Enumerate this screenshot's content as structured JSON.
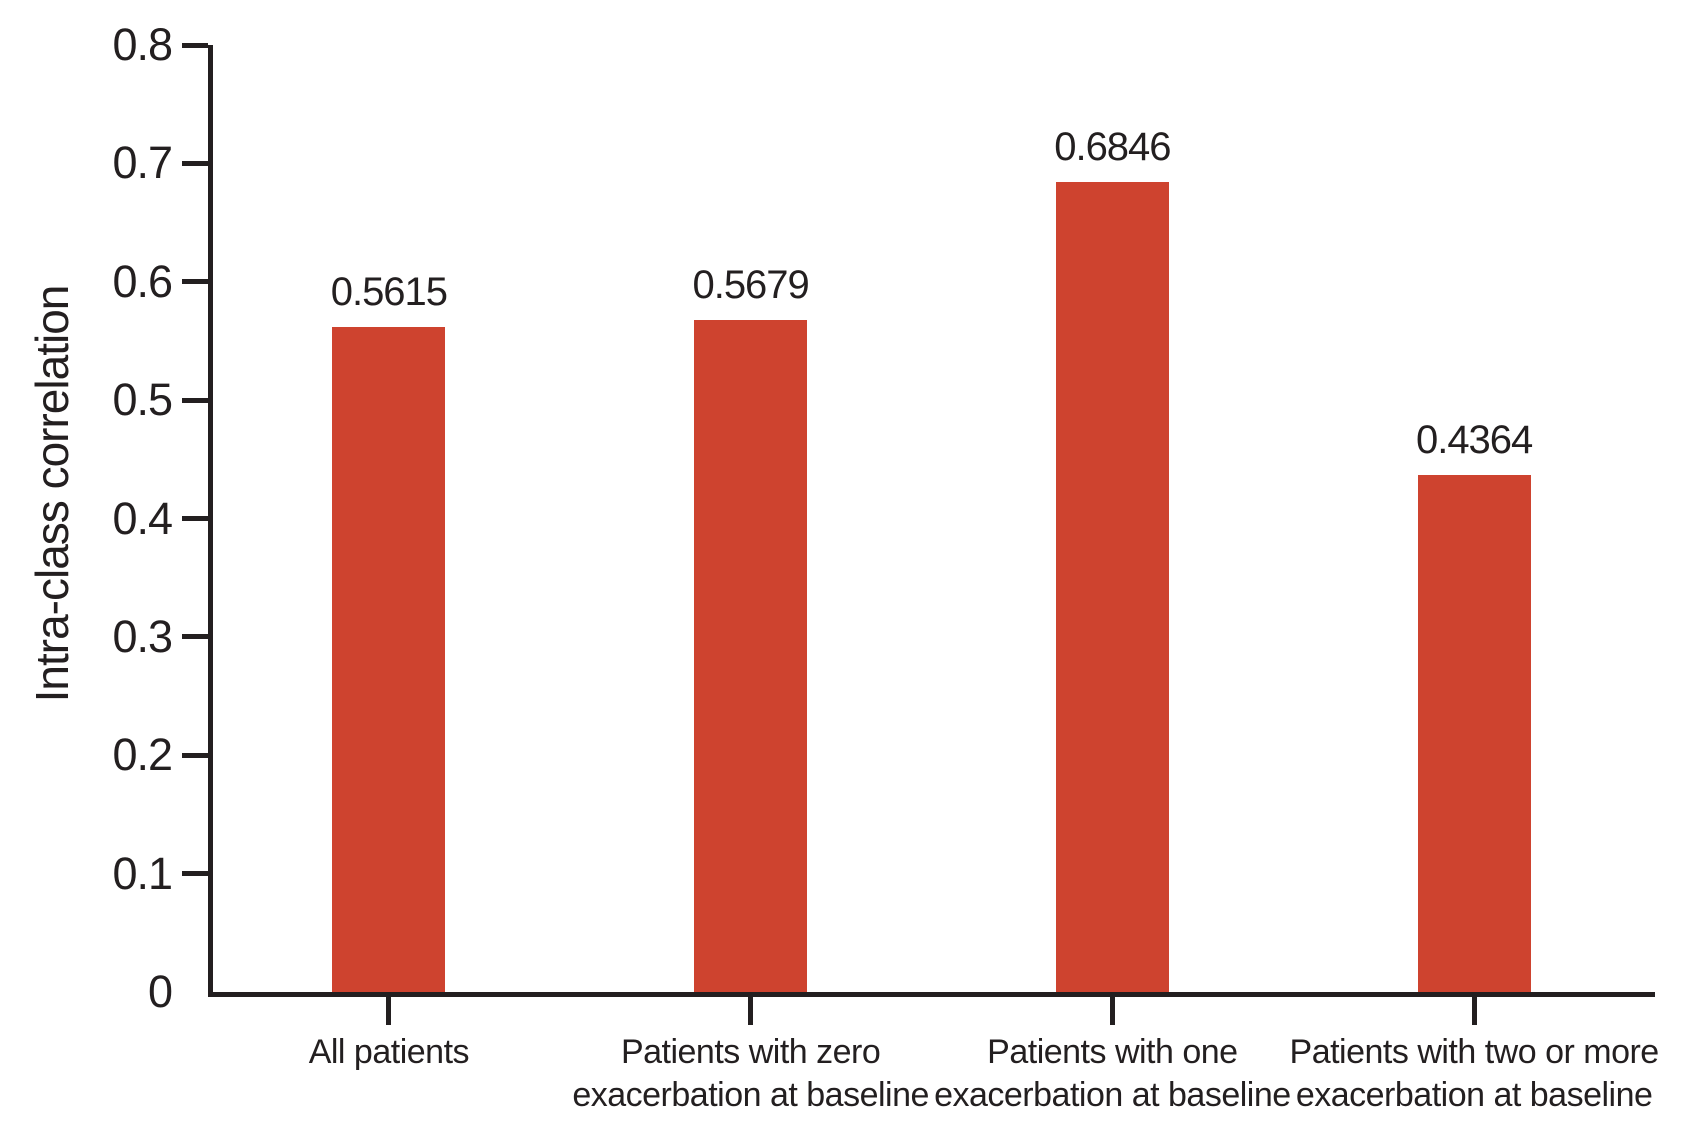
{
  "chart_data": {
    "type": "bar",
    "title": "",
    "ylabel": "Intra-class correlation",
    "xlabel": "",
    "ylim": [
      0,
      0.8
    ],
    "yticks": [
      0,
      0.1,
      0.2,
      0.3,
      0.4,
      0.5,
      0.6,
      0.7,
      0.8
    ],
    "ytick_labels": [
      "0",
      "0.1",
      "0.2",
      "0.3",
      "0.4",
      "0.5",
      "0.6",
      "0.7",
      "0.8"
    ],
    "zero_tick_mark": false,
    "categories": [
      "All patients",
      "Patients with zero exacerbation at baseline",
      "Patients with one exacerbation at baseline",
      "Patients with two or more exacerbation at baseline"
    ],
    "category_lines": [
      [
        "All patients"
      ],
      [
        "Patients with zero",
        "exacerbation at baseline"
      ],
      [
        "Patients with one",
        "exacerbation at baseline"
      ],
      [
        "Patients with two or more",
        "exacerbation at baseline"
      ]
    ],
    "values": [
      0.5615,
      0.5679,
      0.6846,
      0.4364
    ],
    "value_labels": [
      "0.5615",
      "0.5679",
      "0.6846",
      "0.4364"
    ],
    "bar_color": "#CE432F",
    "axis_color": "#231F20",
    "text_color": "#231F20",
    "grid": false,
    "legend": "none"
  }
}
